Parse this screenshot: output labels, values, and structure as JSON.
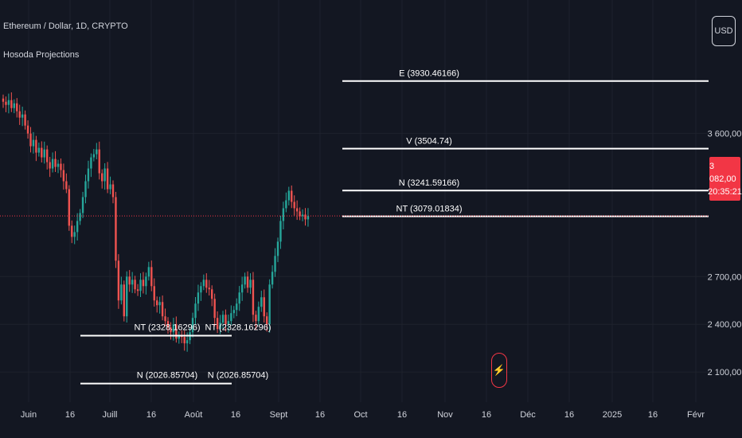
{
  "header": {
    "title": "Ethereum / Dollar, 1D, CRYPTO",
    "indicator": "Hosoda Projections"
  },
  "currency_button": "USD",
  "last_price": {
    "value": "3 082,00",
    "countdown": "20:35:21",
    "color": "#f23645"
  },
  "colors": {
    "background": "#131722",
    "up": "#26a69a",
    "down": "#ef5350",
    "grid": "#1e222d",
    "text": "#d1d4dc",
    "level_line": "#ffffff",
    "price_line": "#f23645"
  },
  "event_icon": "lightning-icon",
  "chart_data": {
    "type": "candlestick",
    "x_axis_labels": [
      "Juin",
      "16",
      "Juill",
      "16",
      "Août",
      "16",
      "Sept",
      "16",
      "Oct",
      "16",
      "Nov",
      "16",
      "Déc",
      "16",
      "2025",
      "16",
      "Févr"
    ],
    "y_axis_labels": [
      "3 600,00",
      "2 700,00",
      "2 400,00",
      "2 100,00"
    ],
    "ylim": [
      1910,
      4440
    ],
    "price_anchor": 3082,
    "grid": true,
    "daily_close_estimates": [
      3800,
      3780,
      3810,
      3760,
      3790,
      3740,
      3700,
      3720,
      3650,
      3600,
      3520,
      3560,
      3480,
      3510,
      3450,
      3500,
      3420,
      3380,
      3440,
      3390,
      3410,
      3370,
      3300,
      3250,
      3020,
      2950,
      2980,
      3050,
      3100,
      3200,
      3300,
      3380,
      3450,
      3470,
      3500,
      3350,
      3300,
      3380,
      3250,
      3280,
      3200,
      2800,
      2550,
      2650,
      2450,
      2700,
      2650,
      2680,
      2620,
      2610,
      2680,
      2640,
      2700,
      2760,
      2640,
      2550,
      2520,
      2540,
      2450,
      2420,
      2380,
      2350,
      2400,
      2310,
      2330,
      2320,
      2280,
      2300,
      2350,
      2440,
      2530,
      2600,
      2640,
      2680,
      2630,
      2620,
      2560,
      2440,
      2370,
      2410,
      2460,
      2400,
      2420,
      2470,
      2490,
      2530,
      2600,
      2650,
      2700,
      2630,
      2680,
      2460,
      2420,
      2510,
      2570,
      2450,
      2400,
      2650,
      2730,
      2830,
      2920,
      3050,
      3130,
      3180,
      3240,
      3170,
      3130,
      3110,
      3080,
      3090,
      3060,
      3082
    ],
    "levels": [
      {
        "label": "E (3930.46166)",
        "value": 3930.46166
      },
      {
        "label": "V (3504.74)",
        "value": 3504.74
      },
      {
        "label": "N (3241.59166)",
        "value": 3241.59166
      },
      {
        "label": "NT (3079.01834)",
        "value": 3079.01834
      }
    ],
    "lower_levels": [
      {
        "label_left": "NT (2328.16296)",
        "label_right": "NT (2328.16296)",
        "value": 2328.16296
      },
      {
        "label_left": "N (2026.85704)",
        "label_right": "N (2026.85704)",
        "value": 2026.85704
      }
    ]
  }
}
